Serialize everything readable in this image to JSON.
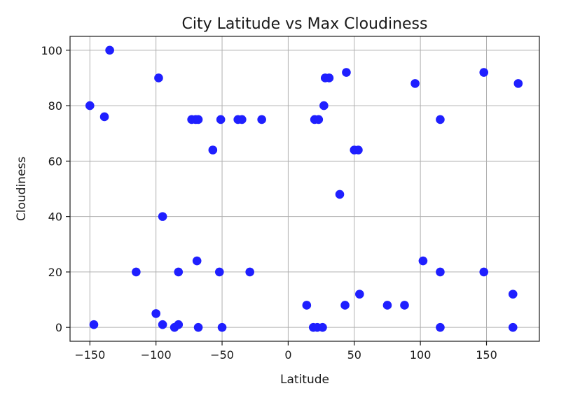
{
  "chart_data": {
    "type": "scatter",
    "title": "City Latitude vs Max Cloudiness",
    "xlabel": "Latitude",
    "ylabel": "Cloudiness",
    "xlim": [
      -165,
      190
    ],
    "ylim": [
      -5,
      105
    ],
    "xticks": [
      -150,
      -100,
      -50,
      0,
      50,
      100,
      150
    ],
    "yticks": [
      0,
      20,
      40,
      60,
      80,
      100
    ],
    "xtick_labels": [
      "−150",
      "−100",
      "−50",
      "0",
      "50",
      "100",
      "150"
    ],
    "ytick_labels": [
      "0",
      "20",
      "40",
      "60",
      "80",
      "100"
    ],
    "grid": true,
    "marker_color": "#1f1fff",
    "points": [
      {
        "x": -135,
        "y": 100
      },
      {
        "x": -150,
        "y": 80
      },
      {
        "x": -139,
        "y": 76
      },
      {
        "x": -98,
        "y": 90
      },
      {
        "x": -73,
        "y": 75
      },
      {
        "x": -70,
        "y": 75
      },
      {
        "x": -68,
        "y": 75
      },
      {
        "x": -51,
        "y": 75
      },
      {
        "x": -38,
        "y": 75
      },
      {
        "x": -35,
        "y": 75
      },
      {
        "x": -20,
        "y": 75
      },
      {
        "x": -57,
        "y": 64
      },
      {
        "x": -95,
        "y": 40
      },
      {
        "x": -69,
        "y": 24
      },
      {
        "x": -115,
        "y": 20
      },
      {
        "x": -83,
        "y": 20
      },
      {
        "x": -52,
        "y": 20
      },
      {
        "x": -29,
        "y": 20
      },
      {
        "x": -100,
        "y": 5
      },
      {
        "x": -147,
        "y": 1
      },
      {
        "x": -95,
        "y": 1
      },
      {
        "x": -86,
        "y": 0
      },
      {
        "x": -83,
        "y": 1
      },
      {
        "x": -68,
        "y": 0
      },
      {
        "x": -50,
        "y": 0
      },
      {
        "x": 44,
        "y": 92
      },
      {
        "x": 28,
        "y": 90
      },
      {
        "x": 31,
        "y": 90
      },
      {
        "x": 27,
        "y": 80
      },
      {
        "x": 20,
        "y": 75
      },
      {
        "x": 23,
        "y": 75
      },
      {
        "x": 50,
        "y": 64
      },
      {
        "x": 53,
        "y": 64
      },
      {
        "x": 39,
        "y": 48
      },
      {
        "x": 54,
        "y": 12
      },
      {
        "x": 14,
        "y": 8
      },
      {
        "x": 43,
        "y": 8
      },
      {
        "x": 75,
        "y": 8
      },
      {
        "x": 88,
        "y": 8
      },
      {
        "x": 19,
        "y": 0
      },
      {
        "x": 22,
        "y": 0
      },
      {
        "x": 26,
        "y": 0
      },
      {
        "x": 96,
        "y": 88
      },
      {
        "x": 115,
        "y": 75
      },
      {
        "x": 102,
        "y": 24
      },
      {
        "x": 115,
        "y": 20
      },
      {
        "x": 115,
        "y": 0
      },
      {
        "x": 148,
        "y": 92
      },
      {
        "x": 148,
        "y": 20
      },
      {
        "x": 174,
        "y": 88
      },
      {
        "x": 170,
        "y": 12
      },
      {
        "x": 170,
        "y": 0
      }
    ]
  }
}
